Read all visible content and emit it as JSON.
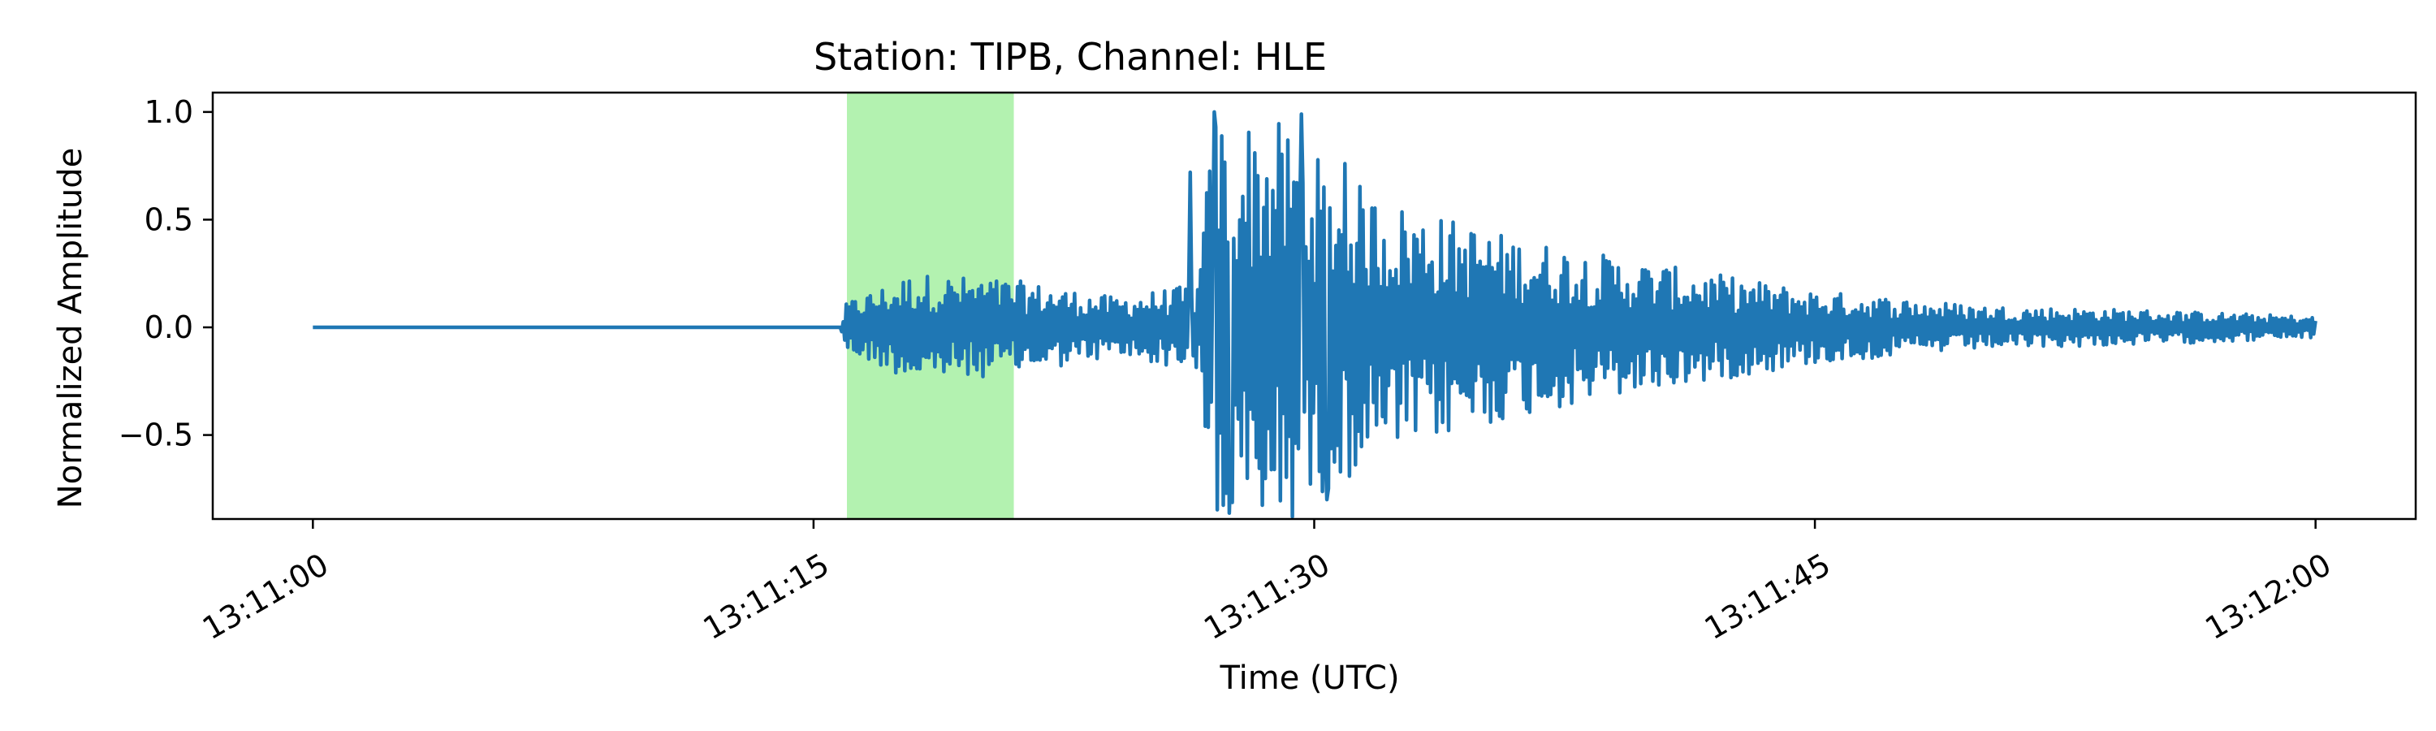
{
  "chart_data": {
    "type": "line",
    "title": "Station: TIPB, Channel: HLE",
    "xlabel": "Time (UTC)",
    "ylabel": "Normalized Amplitude",
    "x_range": [
      "13:11:00",
      "13:12:00"
    ],
    "xlim": [
      "13:10:57",
      "13:12:03"
    ],
    "ylim": [
      -0.89,
      1.09
    ],
    "x_ticks": [
      "13:11:00",
      "13:11:15",
      "13:11:30",
      "13:11:45",
      "13:12:00"
    ],
    "y_ticks": [
      {
        "value": 1.0,
        "label": "1.0"
      },
      {
        "value": 0.5,
        "label": "0.5"
      },
      {
        "value": 0.0,
        "label": "0.0"
      },
      {
        "value": -0.5,
        "label": "−0.5"
      }
    ],
    "highlight_window": {
      "start": "13:11:16",
      "end": "13:11:21",
      "color": "#b3f2b0"
    },
    "series": [
      {
        "color": "#1f77b4",
        "envelope": [
          {
            "t": "13:11:00",
            "amplitude": 0.0
          },
          {
            "t": "13:11:15.8",
            "amplitude": 0.0
          },
          {
            "t": "13:11:16",
            "amplitude": 0.12
          },
          {
            "t": "13:11:18",
            "amplitude": 0.25
          },
          {
            "t": "13:11:21",
            "amplitude": 0.22
          },
          {
            "t": "13:11:24",
            "amplitude": 0.14
          },
          {
            "t": "13:11:26.5",
            "amplitude": 0.2
          },
          {
            "t": "13:11:27",
            "amplitude": 1.0
          },
          {
            "t": "13:11:29",
            "amplitude": 0.95
          },
          {
            "t": "13:11:30",
            "amplitude": 0.8
          },
          {
            "t": "13:11:32",
            "amplitude": 0.6
          },
          {
            "t": "13:11:36",
            "amplitude": 0.42
          },
          {
            "t": "13:11:40",
            "amplitude": 0.3
          },
          {
            "t": "13:11:45",
            "amplitude": 0.17
          },
          {
            "t": "13:11:50",
            "amplitude": 0.1
          },
          {
            "t": "13:11:55",
            "amplitude": 0.08
          },
          {
            "t": "13:12:00",
            "amplitude": 0.05
          }
        ],
        "peaks": [
          {
            "t": "13:11:27.0",
            "value": 1.0
          },
          {
            "t": "13:11:29.6",
            "value": 0.99
          },
          {
            "t": "13:11:30.9",
            "value": 0.76
          },
          {
            "t": "13:11:26.3",
            "value": 0.72
          },
          {
            "t": "13:11:30.4",
            "value": -0.8
          },
          {
            "t": "13:11:28.8",
            "value": -0.66
          },
          {
            "t": "13:11:27.5",
            "value": -0.64
          }
        ]
      }
    ]
  }
}
